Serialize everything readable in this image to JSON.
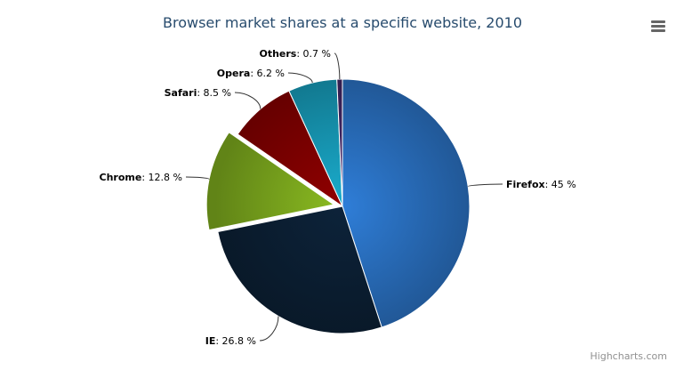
{
  "chart_data": {
    "type": "pie",
    "title": "Browser market shares at a specific website, 2010",
    "unit": "%",
    "slices": [
      {
        "name": "Firefox",
        "value": 45,
        "color": "#2f7ed8"
      },
      {
        "name": "IE",
        "value": 26.8,
        "color": "#0d233a"
      },
      {
        "name": "Chrome",
        "value": 12.8,
        "color": "#8bbc21",
        "sliced": true
      },
      {
        "name": "Safari",
        "value": 8.5,
        "color": "#910000"
      },
      {
        "name": "Opera",
        "value": 6.2,
        "color": "#1aadce"
      },
      {
        "name": "Others",
        "value": 0.7,
        "color": "#492970"
      }
    ],
    "legend": "none"
  },
  "menu_icon": "hamburger-menu-icon",
  "credits": "Highcharts.com"
}
